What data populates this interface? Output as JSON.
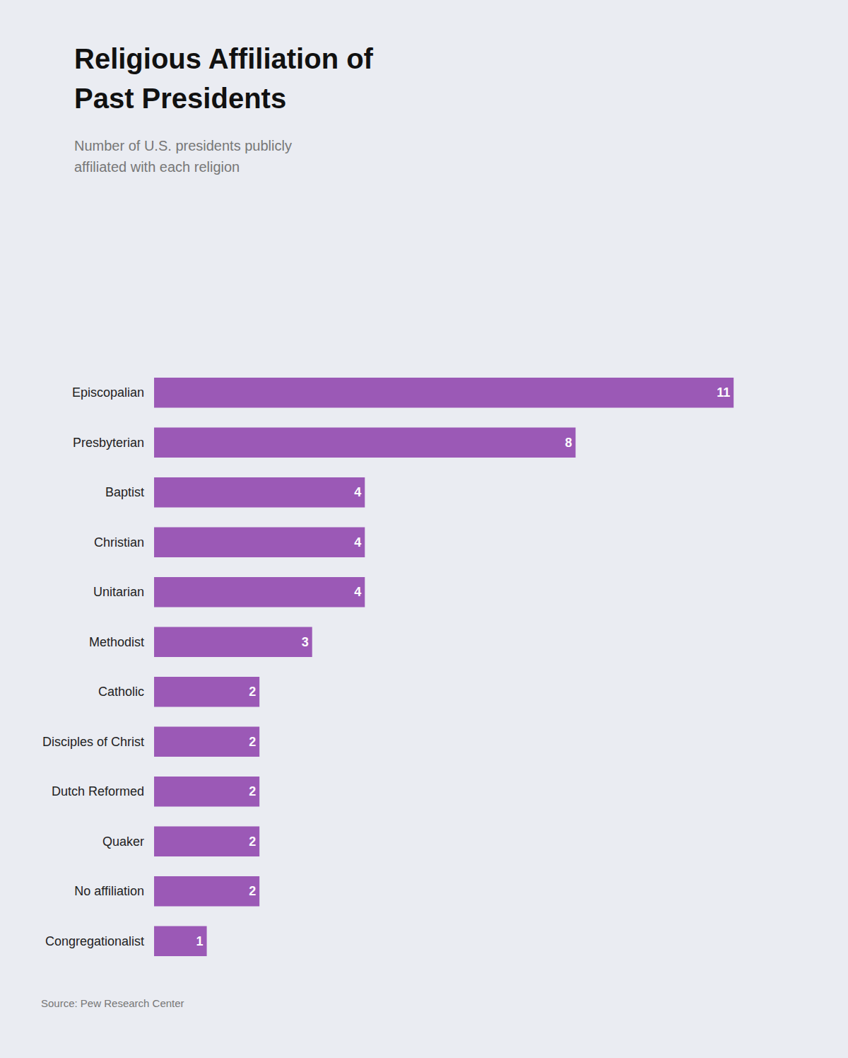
{
  "chart_data": {
    "type": "bar",
    "orientation": "horizontal",
    "title": "Religious Affiliation of\nPast Presidents",
    "subtitle": "Number of U.S. presidents publicly\naffiliated with each religion",
    "annotations": [
      "Source: Pew Research Center"
    ],
    "categories": [
      "Episcopalian",
      "Presbyterian",
      "Baptist",
      "Christian",
      "Unitarian",
      "Methodist",
      "Catholic",
      "Disciples of Christ",
      "Dutch Reformed",
      "Quaker",
      "No affiliation",
      "Congregationalist"
    ],
    "values": [
      11,
      8,
      4,
      4,
      4,
      3,
      2,
      2,
      2,
      2,
      2,
      1
    ],
    "color": "#9b59b6",
    "xlim": [
      0,
      12.5
    ],
    "data_labels": true,
    "grid": false,
    "tick_labels": "y"
  }
}
